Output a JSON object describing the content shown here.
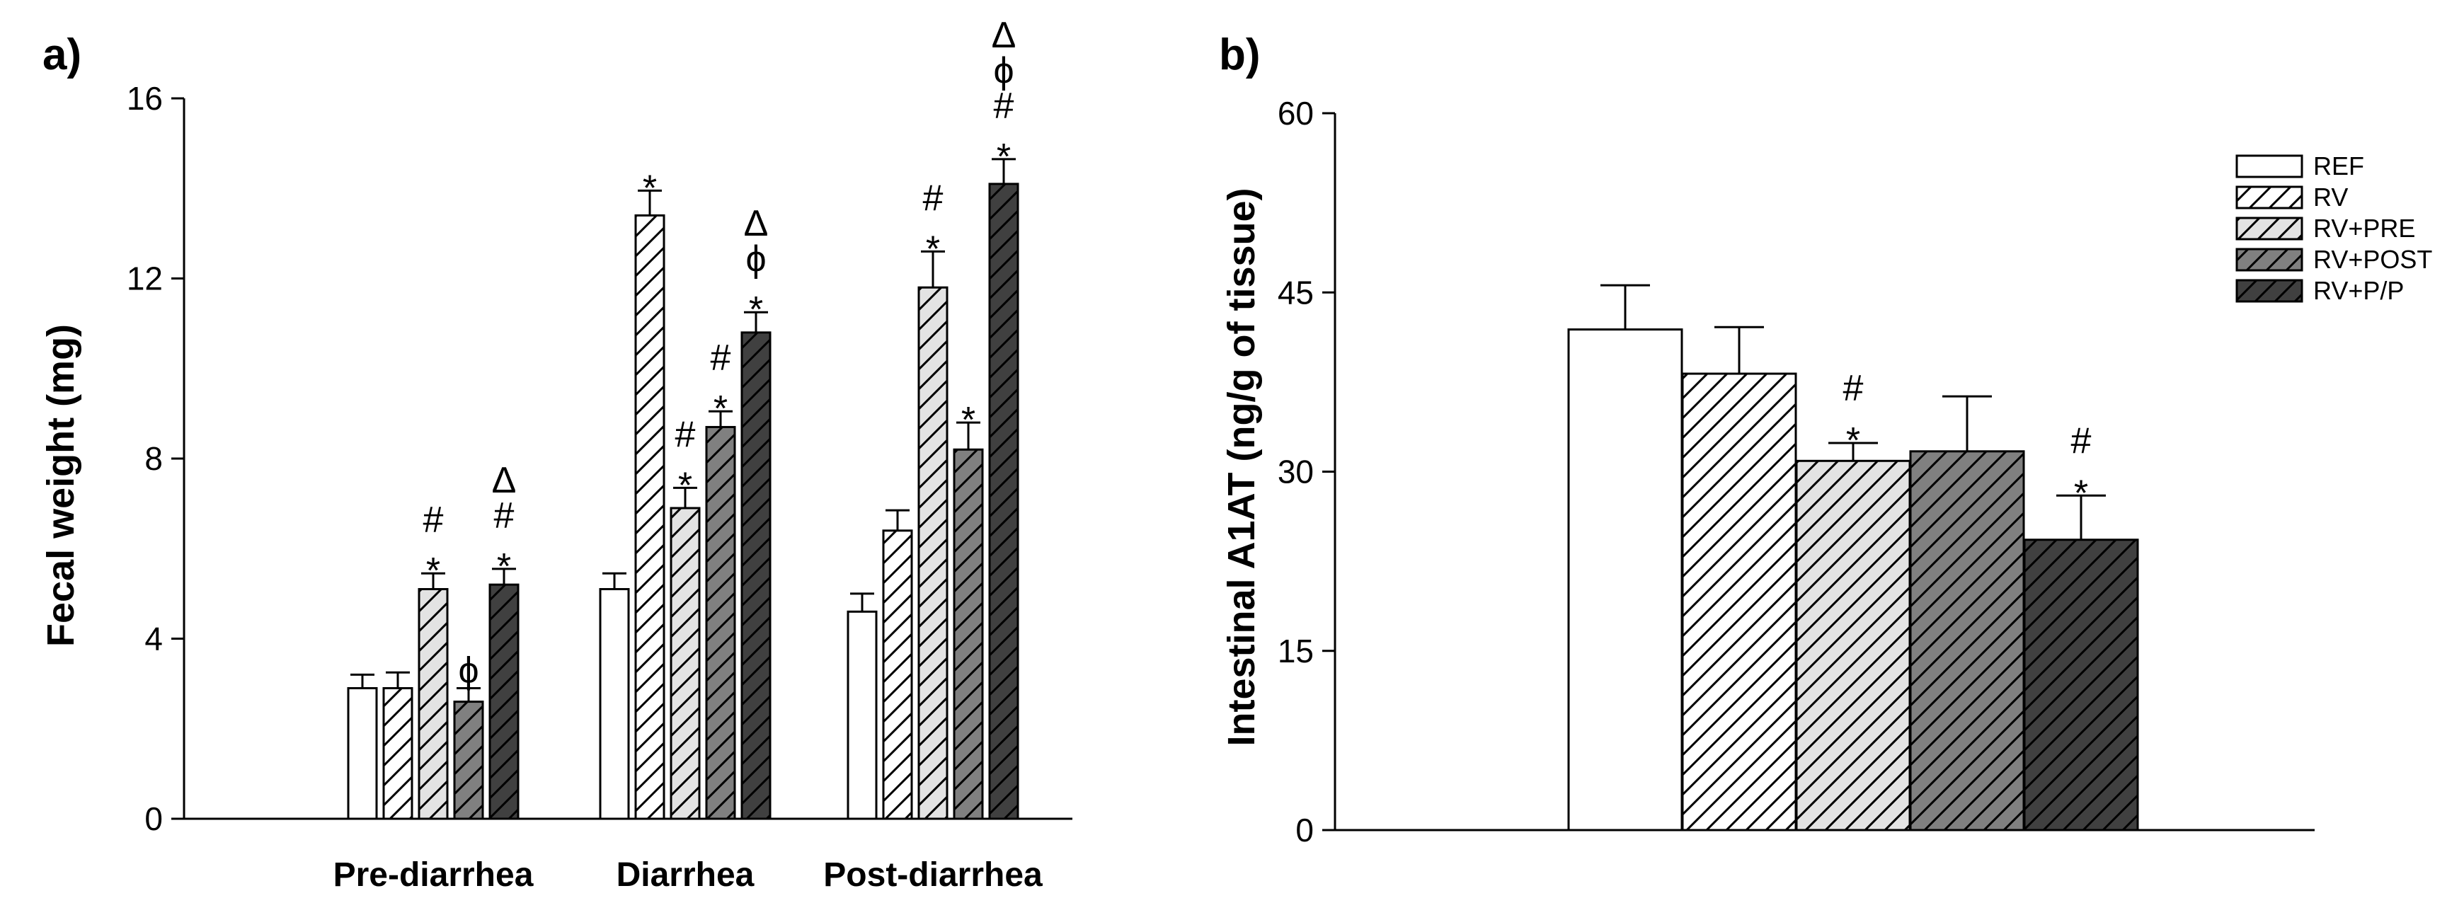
{
  "series": [
    {
      "name": "REF",
      "fill": "#ffffff",
      "hatch": false,
      "stripe": "#000000"
    },
    {
      "name": "RV",
      "fill": "#ffffff",
      "hatch": true,
      "stripe": "#000000"
    },
    {
      "name": "RV+PRE",
      "fill": "#e3e3e3",
      "hatch": true,
      "stripe": "#000000"
    },
    {
      "name": "RV+POST",
      "fill": "#808080",
      "hatch": true,
      "stripe": "#000000"
    },
    {
      "name": "RV+P/P",
      "fill": "#404040",
      "hatch": true,
      "stripe": "#000000"
    }
  ],
  "chart_data": [
    {
      "type": "bar",
      "panel": "a)",
      "title": "",
      "xlabel": "",
      "ylabel": "Fecal weight (mg)",
      "ylim": [
        0,
        16
      ],
      "yticks": [
        0,
        4,
        8,
        12,
        16
      ],
      "categories": [
        "Pre-diarrhea",
        "Diarrhea",
        "Post-diarrhea"
      ],
      "series": [
        {
          "name": "REF",
          "values": [
            2.9,
            5.1,
            4.6
          ],
          "errors": [
            0.3,
            0.35,
            0.4
          ],
          "marks": [
            [],
            [],
            []
          ]
        },
        {
          "name": "RV",
          "values": [
            2.9,
            13.4,
            6.4
          ],
          "errors": [
            0.35,
            0.55,
            0.45
          ],
          "marks": [
            [],
            [
              "*"
            ],
            []
          ]
        },
        {
          "name": "RV+PRE",
          "values": [
            5.1,
            6.9,
            11.8
          ],
          "errors": [
            0.35,
            0.45,
            0.8
          ],
          "marks": [
            [
              "*",
              "#"
            ],
            [
              "*",
              "#"
            ],
            [
              "*",
              "#"
            ]
          ]
        },
        {
          "name": "RV+POST",
          "values": [
            2.6,
            8.7,
            8.2
          ],
          "errors": [
            0.3,
            0.35,
            0.6
          ],
          "marks": [
            [
              "ϕ"
            ],
            [
              "*",
              "#"
            ],
            [
              "*"
            ]
          ]
        },
        {
          "name": "RV+P/P",
          "values": [
            5.2,
            10.8,
            14.1
          ],
          "errors": [
            0.35,
            0.45,
            0.55
          ],
          "marks": [
            [
              "*",
              "#",
              "Δ"
            ],
            [
              "*",
              "ϕ",
              "Δ"
            ],
            [
              "*",
              "#",
              "ϕ",
              "Δ"
            ]
          ]
        }
      ]
    },
    {
      "type": "bar",
      "panel": "b)",
      "title": "",
      "xlabel": "",
      "ylabel": "Intestinal A1AT (ng/g of tissue)",
      "ylim": [
        0,
        60
      ],
      "yticks": [
        0,
        15,
        30,
        45,
        60
      ],
      "categories": [
        ""
      ],
      "legend": {
        "placement": "top-right",
        "entries": [
          "REF",
          "RV",
          "RV+PRE",
          "RV+POST",
          "RV+P/P"
        ]
      },
      "series": [
        {
          "name": "REF",
          "values": [
            41.9
          ],
          "errors": [
            3.7
          ],
          "marks": [
            []
          ]
        },
        {
          "name": "RV",
          "values": [
            38.2
          ],
          "errors": [
            3.9
          ],
          "marks": [
            []
          ]
        },
        {
          "name": "RV+PRE",
          "values": [
            30.9
          ],
          "errors": [
            1.5
          ],
          "marks": [
            [
              "*",
              "#"
            ]
          ]
        },
        {
          "name": "RV+POST",
          "values": [
            31.7
          ],
          "errors": [
            4.6
          ],
          "marks": [
            []
          ]
        },
        {
          "name": "RV+P/P",
          "values": [
            24.3
          ],
          "errors": [
            3.7
          ],
          "marks": [
            [
              "*",
              "#"
            ]
          ]
        }
      ]
    }
  ]
}
